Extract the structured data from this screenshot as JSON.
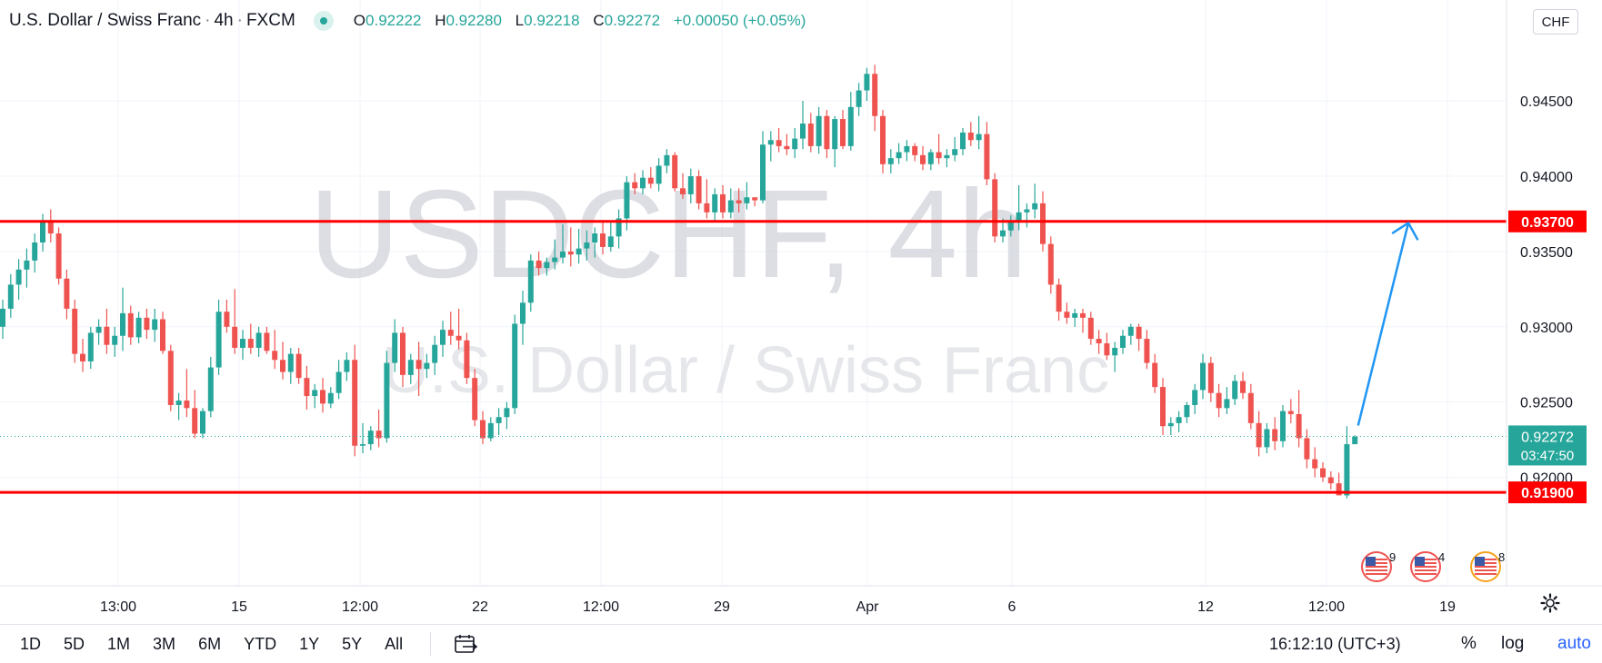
{
  "header": {
    "symbol_name": "U.S. Dollar / Swiss Franc",
    "interval": "4h",
    "exchange": "FXCM",
    "o_label": "O",
    "o_value": "0.92222",
    "h_label": "H",
    "h_value": "0.92280",
    "l_label": "L",
    "l_value": "0.92218",
    "c_label": "C",
    "c_value": "0.92272",
    "change": "+0.00050 (+0.05%)"
  },
  "currency_badge": "CHF",
  "watermark": {
    "line1": "USDCHF, 4h",
    "line2": "U.S. Dollar / Swiss Franc"
  },
  "colors": {
    "up": "#26a69a",
    "down": "#ef5350",
    "level": "#ff0000",
    "arrow": "#2196f3"
  },
  "bottom_bar": {
    "ranges": [
      "1D",
      "5D",
      "1M",
      "3M",
      "6M",
      "YTD",
      "1Y",
      "5Y",
      "All"
    ],
    "calendar_icon": "calendar-goto-icon",
    "clock": "16:12:10 (UTC+3)",
    "percent": "%",
    "log": "log",
    "auto": "auto",
    "settings_icon": "gear-icon"
  },
  "events": [
    {
      "icon": "us-flag-event-icon",
      "count": "9"
    },
    {
      "icon": "us-flag-event-icon",
      "count": "4"
    },
    {
      "icon": "us-flag-event-icon",
      "count": "8"
    }
  ],
  "chart_data": {
    "type": "candlestick",
    "symbol": "USDCHF",
    "interval": "4h",
    "y_axis": {
      "ticks": [
        "0.94500",
        "0.94000",
        "0.93500",
        "0.93000",
        "0.92500",
        "0.92000"
      ],
      "ylim": [
        0.9175,
        0.9505
      ],
      "side": "right"
    },
    "x_axis": {
      "ticks": [
        "13:00",
        "15",
        "12:00",
        "22",
        "12:00",
        "29",
        "Apr",
        "6",
        "12",
        "12:00",
        "19"
      ]
    },
    "horizontal_levels": [
      {
        "price": 0.937,
        "label": "0.93700",
        "color": "#ff0000"
      },
      {
        "price": 0.919,
        "label": "0.91900",
        "color": "#ff0000"
      }
    ],
    "last_price": {
      "price": 0.92272,
      "label": "0.92272",
      "countdown": "03:47:50"
    },
    "projection_arrow": {
      "from_price": 0.9235,
      "to_price": 0.9369,
      "color": "#2196f3"
    },
    "candles": [
      {
        "o": 0.93,
        "h": 0.9318,
        "l": 0.9292,
        "c": 0.9312
      },
      {
        "o": 0.9312,
        "h": 0.9335,
        "l": 0.9306,
        "c": 0.9328
      },
      {
        "o": 0.9328,
        "h": 0.9345,
        "l": 0.9318,
        "c": 0.9338
      },
      {
        "o": 0.9338,
        "h": 0.9352,
        "l": 0.9326,
        "c": 0.9344
      },
      {
        "o": 0.9344,
        "h": 0.9362,
        "l": 0.9336,
        "c": 0.9356
      },
      {
        "o": 0.9356,
        "h": 0.9375,
        "l": 0.935,
        "c": 0.937
      },
      {
        "o": 0.937,
        "h": 0.9378,
        "l": 0.9356,
        "c": 0.9362
      },
      {
        "o": 0.9362,
        "h": 0.9366,
        "l": 0.9328,
        "c": 0.9332
      },
      {
        "o": 0.9332,
        "h": 0.9338,
        "l": 0.9305,
        "c": 0.9312
      },
      {
        "o": 0.9312,
        "h": 0.9318,
        "l": 0.9276,
        "c": 0.9282
      },
      {
        "o": 0.9282,
        "h": 0.9292,
        "l": 0.927,
        "c": 0.9277
      },
      {
        "o": 0.9277,
        "h": 0.93,
        "l": 0.9272,
        "c": 0.9296
      },
      {
        "o": 0.9296,
        "h": 0.9305,
        "l": 0.9288,
        "c": 0.93
      },
      {
        "o": 0.93,
        "h": 0.9312,
        "l": 0.9282,
        "c": 0.9288
      },
      {
        "o": 0.9288,
        "h": 0.93,
        "l": 0.928,
        "c": 0.9294
      },
      {
        "o": 0.9294,
        "h": 0.9326,
        "l": 0.9284,
        "c": 0.9309
      },
      {
        "o": 0.9309,
        "h": 0.9314,
        "l": 0.9288,
        "c": 0.9293
      },
      {
        "o": 0.9293,
        "h": 0.931,
        "l": 0.9289,
        "c": 0.9306
      },
      {
        "o": 0.9306,
        "h": 0.9312,
        "l": 0.9292,
        "c": 0.9298
      },
      {
        "o": 0.9298,
        "h": 0.9312,
        "l": 0.929,
        "c": 0.9305
      },
      {
        "o": 0.9305,
        "h": 0.931,
        "l": 0.9282,
        "c": 0.9284
      },
      {
        "o": 0.9284,
        "h": 0.9288,
        "l": 0.9244,
        "c": 0.9248
      },
      {
        "o": 0.9248,
        "h": 0.9256,
        "l": 0.9238,
        "c": 0.9251
      },
      {
        "o": 0.9251,
        "h": 0.9272,
        "l": 0.924,
        "c": 0.9246
      },
      {
        "o": 0.9246,
        "h": 0.9258,
        "l": 0.9226,
        "c": 0.9229
      },
      {
        "o": 0.9229,
        "h": 0.9246,
        "l": 0.9226,
        "c": 0.9244
      },
      {
        "o": 0.9244,
        "h": 0.928,
        "l": 0.924,
        "c": 0.9273
      },
      {
        "o": 0.9273,
        "h": 0.9318,
        "l": 0.9268,
        "c": 0.931
      },
      {
        "o": 0.931,
        "h": 0.9318,
        "l": 0.9296,
        "c": 0.93
      },
      {
        "o": 0.93,
        "h": 0.9325,
        "l": 0.9282,
        "c": 0.9286
      },
      {
        "o": 0.9286,
        "h": 0.9298,
        "l": 0.9278,
        "c": 0.9292
      },
      {
        "o": 0.9292,
        "h": 0.9302,
        "l": 0.9282,
        "c": 0.9286
      },
      {
        "o": 0.9286,
        "h": 0.93,
        "l": 0.928,
        "c": 0.9296
      },
      {
        "o": 0.9296,
        "h": 0.93,
        "l": 0.9282,
        "c": 0.9284
      },
      {
        "o": 0.9284,
        "h": 0.9298,
        "l": 0.9272,
        "c": 0.9278
      },
      {
        "o": 0.9278,
        "h": 0.929,
        "l": 0.9265,
        "c": 0.927
      },
      {
        "o": 0.927,
        "h": 0.9286,
        "l": 0.9262,
        "c": 0.9282
      },
      {
        "o": 0.9282,
        "h": 0.9286,
        "l": 0.9262,
        "c": 0.9266
      },
      {
        "o": 0.9266,
        "h": 0.9274,
        "l": 0.9245,
        "c": 0.9254
      },
      {
        "o": 0.9254,
        "h": 0.9262,
        "l": 0.9246,
        "c": 0.9258
      },
      {
        "o": 0.9258,
        "h": 0.9266,
        "l": 0.9243,
        "c": 0.9249
      },
      {
        "o": 0.9249,
        "h": 0.926,
        "l": 0.9246,
        "c": 0.9256
      },
      {
        "o": 0.9256,
        "h": 0.9278,
        "l": 0.9252,
        "c": 0.927
      },
      {
        "o": 0.927,
        "h": 0.9283,
        "l": 0.9264,
        "c": 0.9278
      },
      {
        "o": 0.9278,
        "h": 0.9288,
        "l": 0.9214,
        "c": 0.9221
      },
      {
        "o": 0.9221,
        "h": 0.9236,
        "l": 0.9216,
        "c": 0.9222
      },
      {
        "o": 0.9222,
        "h": 0.9234,
        "l": 0.9218,
        "c": 0.9231
      },
      {
        "o": 0.9231,
        "h": 0.9245,
        "l": 0.922,
        "c": 0.9226
      },
      {
        "o": 0.9226,
        "h": 0.9284,
        "l": 0.9223,
        "c": 0.9276
      },
      {
        "o": 0.9276,
        "h": 0.9305,
        "l": 0.927,
        "c": 0.9296
      },
      {
        "o": 0.9296,
        "h": 0.93,
        "l": 0.926,
        "c": 0.9268
      },
      {
        "o": 0.9268,
        "h": 0.9282,
        "l": 0.9262,
        "c": 0.9278
      },
      {
        "o": 0.9278,
        "h": 0.929,
        "l": 0.9254,
        "c": 0.9272
      },
      {
        "o": 0.9272,
        "h": 0.9282,
        "l": 0.9266,
        "c": 0.9276
      },
      {
        "o": 0.9276,
        "h": 0.9294,
        "l": 0.9268,
        "c": 0.9288
      },
      {
        "o": 0.9288,
        "h": 0.9304,
        "l": 0.928,
        "c": 0.9298
      },
      {
        "o": 0.9298,
        "h": 0.931,
        "l": 0.9288,
        "c": 0.9294
      },
      {
        "o": 0.9294,
        "h": 0.9312,
        "l": 0.9285,
        "c": 0.9291
      },
      {
        "o": 0.9291,
        "h": 0.9296,
        "l": 0.9262,
        "c": 0.9266
      },
      {
        "o": 0.9266,
        "h": 0.9272,
        "l": 0.9234,
        "c": 0.9238
      },
      {
        "o": 0.9238,
        "h": 0.9244,
        "l": 0.9222,
        "c": 0.9226
      },
      {
        "o": 0.9226,
        "h": 0.924,
        "l": 0.9224,
        "c": 0.9236
      },
      {
        "o": 0.9236,
        "h": 0.9246,
        "l": 0.9228,
        "c": 0.924
      },
      {
        "o": 0.924,
        "h": 0.925,
        "l": 0.9232,
        "c": 0.9246
      },
      {
        "o": 0.9246,
        "h": 0.9308,
        "l": 0.9242,
        "c": 0.9302
      },
      {
        "o": 0.9302,
        "h": 0.9324,
        "l": 0.9288,
        "c": 0.9316
      },
      {
        "o": 0.9316,
        "h": 0.9348,
        "l": 0.931,
        "c": 0.9344
      },
      {
        "o": 0.9344,
        "h": 0.935,
        "l": 0.9334,
        "c": 0.9339
      },
      {
        "o": 0.9339,
        "h": 0.9346,
        "l": 0.9334,
        "c": 0.9343
      },
      {
        "o": 0.9343,
        "h": 0.9358,
        "l": 0.9338,
        "c": 0.9346
      },
      {
        "o": 0.9346,
        "h": 0.9368,
        "l": 0.9342,
        "c": 0.935
      },
      {
        "o": 0.935,
        "h": 0.9366,
        "l": 0.934,
        "c": 0.9348
      },
      {
        "o": 0.9348,
        "h": 0.9365,
        "l": 0.9342,
        "c": 0.9352
      },
      {
        "o": 0.9352,
        "h": 0.9364,
        "l": 0.9344,
        "c": 0.9356
      },
      {
        "o": 0.9356,
        "h": 0.9366,
        "l": 0.9346,
        "c": 0.9362
      },
      {
        "o": 0.9362,
        "h": 0.937,
        "l": 0.9348,
        "c": 0.9353
      },
      {
        "o": 0.9353,
        "h": 0.937,
        "l": 0.935,
        "c": 0.936
      },
      {
        "o": 0.936,
        "h": 0.9378,
        "l": 0.9352,
        "c": 0.9372
      },
      {
        "o": 0.9372,
        "h": 0.94,
        "l": 0.9364,
        "c": 0.9396
      },
      {
        "o": 0.9396,
        "h": 0.9402,
        "l": 0.9388,
        "c": 0.9392
      },
      {
        "o": 0.9392,
        "h": 0.9404,
        "l": 0.9388,
        "c": 0.9399
      },
      {
        "o": 0.9399,
        "h": 0.9406,
        "l": 0.9392,
        "c": 0.9395
      },
      {
        "o": 0.9395,
        "h": 0.9412,
        "l": 0.939,
        "c": 0.9407
      },
      {
        "o": 0.9407,
        "h": 0.9418,
        "l": 0.9402,
        "c": 0.9414
      },
      {
        "o": 0.9414,
        "h": 0.9416,
        "l": 0.939,
        "c": 0.9392
      },
      {
        "o": 0.9392,
        "h": 0.9402,
        "l": 0.9385,
        "c": 0.9388
      },
      {
        "o": 0.9388,
        "h": 0.9405,
        "l": 0.9382,
        "c": 0.94
      },
      {
        "o": 0.94,
        "h": 0.9404,
        "l": 0.9378,
        "c": 0.9382
      },
      {
        "o": 0.9382,
        "h": 0.9398,
        "l": 0.9372,
        "c": 0.9376
      },
      {
        "o": 0.9376,
        "h": 0.9392,
        "l": 0.937,
        "c": 0.9388
      },
      {
        "o": 0.9388,
        "h": 0.9394,
        "l": 0.9372,
        "c": 0.9376
      },
      {
        "o": 0.9376,
        "h": 0.9392,
        "l": 0.9372,
        "c": 0.9384
      },
      {
        "o": 0.9384,
        "h": 0.9392,
        "l": 0.9376,
        "c": 0.9382
      },
      {
        "o": 0.9382,
        "h": 0.9396,
        "l": 0.9378,
        "c": 0.9386
      },
      {
        "o": 0.9386,
        "h": 0.9386,
        "l": 0.938,
        "c": 0.9384
      },
      {
        "o": 0.9384,
        "h": 0.943,
        "l": 0.9382,
        "c": 0.9421
      },
      {
        "o": 0.9421,
        "h": 0.943,
        "l": 0.941,
        "c": 0.9424
      },
      {
        "o": 0.9424,
        "h": 0.9432,
        "l": 0.9416,
        "c": 0.942
      },
      {
        "o": 0.942,
        "h": 0.9428,
        "l": 0.9414,
        "c": 0.9418
      },
      {
        "o": 0.9418,
        "h": 0.9432,
        "l": 0.9412,
        "c": 0.9425
      },
      {
        "o": 0.9425,
        "h": 0.945,
        "l": 0.9418,
        "c": 0.9435
      },
      {
        "o": 0.9435,
        "h": 0.9442,
        "l": 0.9416,
        "c": 0.942
      },
      {
        "o": 0.942,
        "h": 0.9446,
        "l": 0.9415,
        "c": 0.944
      },
      {
        "o": 0.944,
        "h": 0.9444,
        "l": 0.9412,
        "c": 0.9418
      },
      {
        "o": 0.9418,
        "h": 0.944,
        "l": 0.9406,
        "c": 0.9438
      },
      {
        "o": 0.9438,
        "h": 0.9444,
        "l": 0.9418,
        "c": 0.942
      },
      {
        "o": 0.942,
        "h": 0.9456,
        "l": 0.9417,
        "c": 0.9446
      },
      {
        "o": 0.9446,
        "h": 0.9462,
        "l": 0.944,
        "c": 0.9457
      },
      {
        "o": 0.9457,
        "h": 0.9472,
        "l": 0.945,
        "c": 0.9468
      },
      {
        "o": 0.9468,
        "h": 0.9474,
        "l": 0.943,
        "c": 0.944
      },
      {
        "o": 0.944,
        "h": 0.9444,
        "l": 0.9402,
        "c": 0.9408
      },
      {
        "o": 0.9408,
        "h": 0.9418,
        "l": 0.9402,
        "c": 0.9412
      },
      {
        "o": 0.9412,
        "h": 0.9422,
        "l": 0.9408,
        "c": 0.9416
      },
      {
        "o": 0.9416,
        "h": 0.9424,
        "l": 0.941,
        "c": 0.942
      },
      {
        "o": 0.942,
        "h": 0.9422,
        "l": 0.941,
        "c": 0.9414
      },
      {
        "o": 0.9414,
        "h": 0.942,
        "l": 0.9404,
        "c": 0.9408
      },
      {
        "o": 0.9408,
        "h": 0.9418,
        "l": 0.9404,
        "c": 0.9416
      },
      {
        "o": 0.9416,
        "h": 0.9428,
        "l": 0.9408,
        "c": 0.9412
      },
      {
        "o": 0.9412,
        "h": 0.9418,
        "l": 0.9406,
        "c": 0.9414
      },
      {
        "o": 0.9414,
        "h": 0.9426,
        "l": 0.941,
        "c": 0.9418
      },
      {
        "o": 0.9418,
        "h": 0.9432,
        "l": 0.9414,
        "c": 0.9429
      },
      {
        "o": 0.9429,
        "h": 0.9436,
        "l": 0.942,
        "c": 0.9424
      },
      {
        "o": 0.9424,
        "h": 0.944,
        "l": 0.9418,
        "c": 0.9428
      },
      {
        "o": 0.9428,
        "h": 0.9436,
        "l": 0.9394,
        "c": 0.9398
      },
      {
        "o": 0.9398,
        "h": 0.9402,
        "l": 0.9356,
        "c": 0.936
      },
      {
        "o": 0.936,
        "h": 0.9372,
        "l": 0.9356,
        "c": 0.9364
      },
      {
        "o": 0.9364,
        "h": 0.9374,
        "l": 0.936,
        "c": 0.937
      },
      {
        "o": 0.937,
        "h": 0.9394,
        "l": 0.9364,
        "c": 0.9376
      },
      {
        "o": 0.9376,
        "h": 0.9382,
        "l": 0.9366,
        "c": 0.9378
      },
      {
        "o": 0.9378,
        "h": 0.9395,
        "l": 0.9372,
        "c": 0.9382
      },
      {
        "o": 0.9382,
        "h": 0.939,
        "l": 0.935,
        "c": 0.9355
      },
      {
        "o": 0.9355,
        "h": 0.936,
        "l": 0.9322,
        "c": 0.9328
      },
      {
        "o": 0.9328,
        "h": 0.9332,
        "l": 0.9304,
        "c": 0.931
      },
      {
        "o": 0.931,
        "h": 0.9316,
        "l": 0.9302,
        "c": 0.9306
      },
      {
        "o": 0.9306,
        "h": 0.9312,
        "l": 0.93,
        "c": 0.9309
      },
      {
        "o": 0.9309,
        "h": 0.9312,
        "l": 0.9296,
        "c": 0.9306
      },
      {
        "o": 0.9306,
        "h": 0.931,
        "l": 0.9288,
        "c": 0.9292
      },
      {
        "o": 0.9292,
        "h": 0.9298,
        "l": 0.9282,
        "c": 0.9289
      },
      {
        "o": 0.9289,
        "h": 0.9296,
        "l": 0.9278,
        "c": 0.9281
      },
      {
        "o": 0.9281,
        "h": 0.929,
        "l": 0.927,
        "c": 0.9286
      },
      {
        "o": 0.9286,
        "h": 0.9298,
        "l": 0.9282,
        "c": 0.9294
      },
      {
        "o": 0.9294,
        "h": 0.9302,
        "l": 0.9288,
        "c": 0.93
      },
      {
        "o": 0.93,
        "h": 0.9302,
        "l": 0.9284,
        "c": 0.9292
      },
      {
        "o": 0.9292,
        "h": 0.9298,
        "l": 0.9272,
        "c": 0.9276
      },
      {
        "o": 0.9276,
        "h": 0.9282,
        "l": 0.9256,
        "c": 0.926
      },
      {
        "o": 0.926,
        "h": 0.9266,
        "l": 0.9228,
        "c": 0.9234
      },
      {
        "o": 0.9234,
        "h": 0.924,
        "l": 0.9228,
        "c": 0.9236
      },
      {
        "o": 0.9236,
        "h": 0.9244,
        "l": 0.923,
        "c": 0.924
      },
      {
        "o": 0.924,
        "h": 0.925,
        "l": 0.9236,
        "c": 0.9248
      },
      {
        "o": 0.9248,
        "h": 0.9262,
        "l": 0.9242,
        "c": 0.9258
      },
      {
        "o": 0.9258,
        "h": 0.9282,
        "l": 0.9252,
        "c": 0.9276
      },
      {
        "o": 0.9276,
        "h": 0.928,
        "l": 0.925,
        "c": 0.9256
      },
      {
        "o": 0.9256,
        "h": 0.9262,
        "l": 0.924,
        "c": 0.9246
      },
      {
        "o": 0.9246,
        "h": 0.926,
        "l": 0.9242,
        "c": 0.9252
      },
      {
        "o": 0.9252,
        "h": 0.9268,
        "l": 0.9248,
        "c": 0.9264
      },
      {
        "o": 0.9264,
        "h": 0.927,
        "l": 0.9252,
        "c": 0.9256
      },
      {
        "o": 0.9256,
        "h": 0.9262,
        "l": 0.9232,
        "c": 0.9236
      },
      {
        "o": 0.9236,
        "h": 0.9244,
        "l": 0.9214,
        "c": 0.922
      },
      {
        "o": 0.922,
        "h": 0.9236,
        "l": 0.9216,
        "c": 0.9232
      },
      {
        "o": 0.9232,
        "h": 0.924,
        "l": 0.9218,
        "c": 0.9224
      },
      {
        "o": 0.9224,
        "h": 0.9248,
        "l": 0.922,
        "c": 0.9244
      },
      {
        "o": 0.9244,
        "h": 0.9252,
        "l": 0.9236,
        "c": 0.9242
      },
      {
        "o": 0.9242,
        "h": 0.9258,
        "l": 0.922,
        "c": 0.9226
      },
      {
        "o": 0.9226,
        "h": 0.9232,
        "l": 0.9206,
        "c": 0.9212
      },
      {
        "o": 0.9212,
        "h": 0.922,
        "l": 0.92,
        "c": 0.9206
      },
      {
        "o": 0.9206,
        "h": 0.921,
        "l": 0.9197,
        "c": 0.92
      },
      {
        "o": 0.92,
        "h": 0.9204,
        "l": 0.9192,
        "c": 0.9196
      },
      {
        "o": 0.9196,
        "h": 0.9203,
        "l": 0.919,
        "c": 0.9188
      },
      {
        "o": 0.9188,
        "h": 0.9234,
        "l": 0.9186,
        "c": 0.9222
      },
      {
        "o": 0.9222,
        "h": 0.9228,
        "l": 0.9222,
        "c": 0.9227
      }
    ]
  }
}
